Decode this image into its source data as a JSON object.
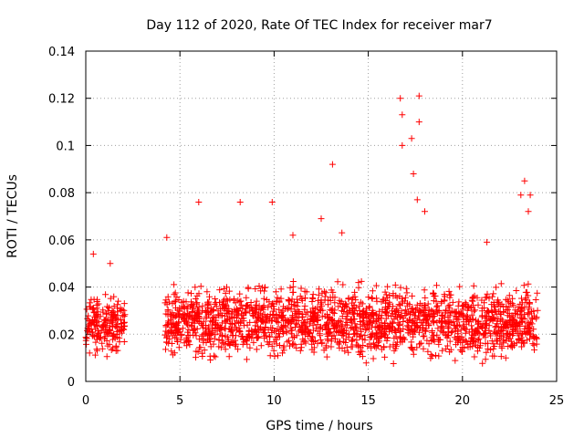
{
  "chart_data": {
    "type": "scatter",
    "title": "Day 112 of 2020, Rate Of TEC Index for receiver mar7",
    "xlabel": "GPS time / hours",
    "ylabel": "ROTI / TECUs",
    "xlim": [
      0,
      25
    ],
    "ylim": [
      0,
      0.14
    ],
    "xticks": [
      0,
      5,
      10,
      15,
      20,
      25
    ],
    "xtick_labels": [
      "0",
      "5",
      "10",
      "15",
      "20",
      "25"
    ],
    "yticks": [
      0,
      0.02,
      0.04,
      0.06,
      0.08,
      0.1,
      0.12,
      0.14
    ],
    "ytick_labels": [
      "0",
      "0.02",
      "0.04",
      "0.06",
      "0.08",
      "0.1",
      "0.12",
      "0.14"
    ],
    "grid": true,
    "marker": "+",
    "color": "#ff0000",
    "series": [
      {
        "name": "ROTI",
        "segments": [
          {
            "x_range": [
              0.0,
              2.1
            ],
            "typical_range": [
              0.008,
              0.04
            ]
          },
          {
            "x_range": [
              4.2,
              24.0
            ],
            "typical_range": [
              0.005,
              0.045
            ]
          }
        ],
        "notable_points": [
          {
            "x": 0.4,
            "y": 0.054
          },
          {
            "x": 1.3,
            "y": 0.05
          },
          {
            "x": 4.3,
            "y": 0.061
          },
          {
            "x": 6.0,
            "y": 0.076
          },
          {
            "x": 8.2,
            "y": 0.076
          },
          {
            "x": 9.9,
            "y": 0.076
          },
          {
            "x": 11.0,
            "y": 0.062
          },
          {
            "x": 12.5,
            "y": 0.069
          },
          {
            "x": 13.1,
            "y": 0.092
          },
          {
            "x": 13.6,
            "y": 0.063
          },
          {
            "x": 16.7,
            "y": 0.12
          },
          {
            "x": 16.8,
            "y": 0.113
          },
          {
            "x": 16.8,
            "y": 0.1
          },
          {
            "x": 17.3,
            "y": 0.103
          },
          {
            "x": 17.7,
            "y": 0.121
          },
          {
            "x": 17.7,
            "y": 0.11
          },
          {
            "x": 17.4,
            "y": 0.088
          },
          {
            "x": 17.6,
            "y": 0.077
          },
          {
            "x": 18.0,
            "y": 0.072
          },
          {
            "x": 21.3,
            "y": 0.059
          },
          {
            "x": 23.3,
            "y": 0.085
          },
          {
            "x": 23.1,
            "y": 0.079
          },
          {
            "x": 23.6,
            "y": 0.079
          },
          {
            "x": 23.5,
            "y": 0.072
          }
        ]
      }
    ]
  }
}
